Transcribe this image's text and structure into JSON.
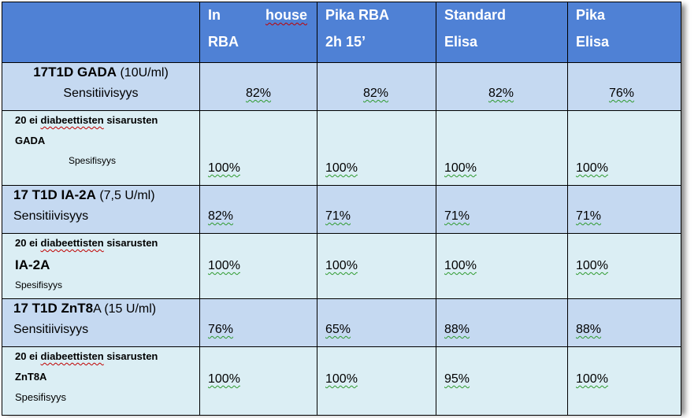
{
  "headers": [
    {
      "line1": "",
      "line2": ""
    },
    {
      "line1_a": "In",
      "line1_b": "house",
      "line2": "RBA"
    },
    {
      "line1": "Pika RBA",
      "line2": "2h 15’"
    },
    {
      "line1": "Standard",
      "line2": "Elisa"
    },
    {
      "line1": "Pika",
      "line2": "Elisa"
    }
  ],
  "rows": [
    {
      "title": "17T1D GADA",
      "title_suffix": " (10U/ml)",
      "subtitle": "Sensitiivisyys",
      "values": [
        "82%",
        "82%",
        "82%",
        "76%"
      ]
    },
    {
      "line1a": "20 ei ",
      "line1b": "diabeettisten",
      "line1c": " sisarusten",
      "line2": "GADA",
      "line3": "Spesifisyys",
      "values": [
        "100%",
        "100%",
        "100%",
        "100%"
      ]
    },
    {
      "title": "17 T1D IA-2A",
      "title_suffix": " (7,5 U/ml)",
      "subtitle": "Sensitiivisyys",
      "values": [
        "82%",
        "71%",
        "71%",
        "71%"
      ]
    },
    {
      "line1a": "20 ei ",
      "line1b": "diabeettisten",
      "line1c": " sisarusten",
      "line2": "IA-2A",
      "line3": "Spesifisyys",
      "values": [
        "100%",
        "100%",
        "100%",
        "100%"
      ]
    },
    {
      "title": "17 T1D ZnT8",
      "title_suffix": "A (15 U/ml)",
      "subtitle": "Sensitiivisyys",
      "values": [
        "76%",
        "65%",
        "88%",
        "88%"
      ]
    },
    {
      "line1a": "20 ei ",
      "line1b": "diabeettisten",
      "line1c": " sisarusten",
      "line2": "ZnT8A",
      "line3": "Spesifisyys",
      "values": [
        "100%",
        "100%",
        "95%",
        "100%"
      ]
    }
  ]
}
